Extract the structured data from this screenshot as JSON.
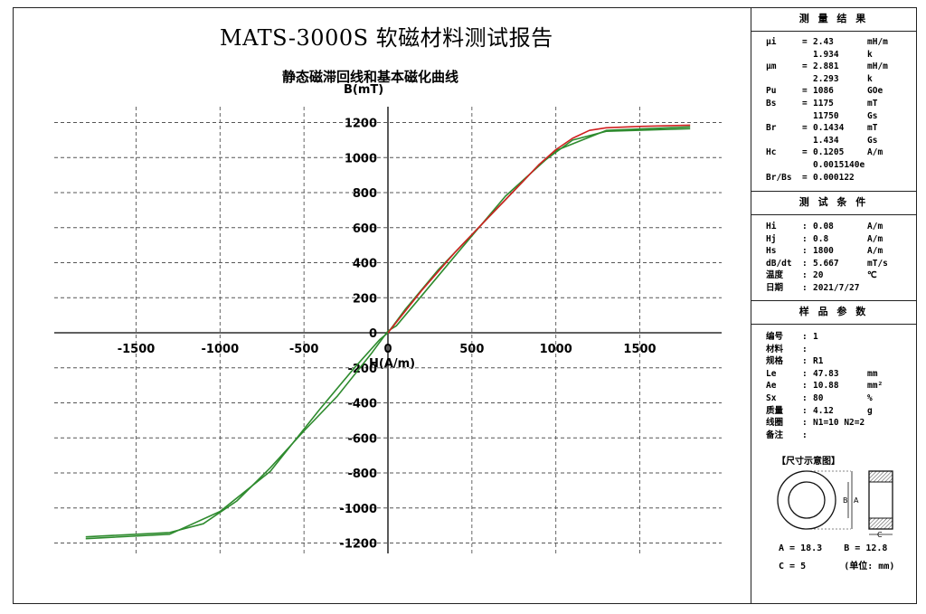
{
  "report_title": "MATS-3000S 软磁材料测试报告",
  "chart_title": "静态磁滞回线和基本磁化曲线",
  "colors": {
    "hysteresis": "#2e8b2e",
    "magnetization": "#d02020",
    "grid": "#555555"
  },
  "chart_data": {
    "type": "line",
    "title": "静态磁滞回线和基本磁化曲线",
    "xlabel": "H(A/m)",
    "ylabel": "B(mT)",
    "xlim": [
      -2000,
      2000
    ],
    "ylim": [
      -1300,
      1300
    ],
    "x_ticks": [
      -1500,
      -1000,
      -500,
      0,
      500,
      1000,
      1500
    ],
    "y_ticks": [
      -1200,
      -1000,
      -800,
      -600,
      -400,
      -200,
      0,
      200,
      400,
      600,
      800,
      1000,
      1200
    ],
    "grid": true,
    "series": [
      {
        "color": "#2e8b2e",
        "x": [
          -1800,
          -1300,
          -1000,
          -700,
          -400,
          -200,
          -50,
          0,
          100,
          300,
          500,
          700,
          900,
          1100,
          1300,
          1800
        ],
        "y": [
          -1175,
          -1150,
          -1020,
          -790,
          -430,
          -200,
          -40,
          0,
          130,
          360,
          560,
          760,
          960,
          1100,
          1150,
          1165
        ]
      },
      {
        "color": "#2e8b2e",
        "x": [
          1800,
          1300,
          1000,
          700,
          400,
          200,
          50,
          0,
          -100,
          -300,
          -500,
          -700,
          -900,
          -1100,
          -1300,
          -1800
        ],
        "y": [
          1175,
          1155,
          1040,
          780,
          440,
          210,
          40,
          10,
          -120,
          -360,
          -560,
          -770,
          -960,
          -1090,
          -1140,
          -1165
        ]
      },
      {
        "color": "#d02020",
        "x": [
          0,
          100,
          200,
          300,
          400,
          500,
          600,
          700,
          800,
          900,
          1000,
          1100,
          1200,
          1300,
          1500,
          1800
        ],
        "y": [
          0,
          120,
          240,
          350,
          460,
          560,
          660,
          760,
          860,
          960,
          1045,
          1110,
          1155,
          1170,
          1178,
          1185
        ]
      }
    ]
  },
  "panel": {
    "results": {
      "title": "测 量 结 果",
      "rows": [
        {
          "k": "μi",
          "eq": "=",
          "v": "2.43",
          "u": "mH/m"
        },
        {
          "k": "",
          "eq": "",
          "v": "1.934",
          "u": "k"
        },
        {
          "k": "μm",
          "eq": "=",
          "v": "2.881",
          "u": "mH/m"
        },
        {
          "k": "",
          "eq": "",
          "v": "2.293",
          "u": "k"
        },
        {
          "k": "Pu",
          "eq": "=",
          "v": "1086",
          "u": "GOe"
        },
        {
          "k": "Bs",
          "eq": "=",
          "v": "1175",
          "u": "mT"
        },
        {
          "k": "",
          "eq": "",
          "v": "11750",
          "u": "Gs"
        },
        {
          "k": "Br",
          "eq": "=",
          "v": "0.1434",
          "u": "mT"
        },
        {
          "k": "",
          "eq": "",
          "v": "1.434",
          "u": "Gs"
        },
        {
          "k": "Hc",
          "eq": "=",
          "v": "0.1205",
          "u": "A/m"
        },
        {
          "k": "",
          "eq": "",
          "v": "0.0015140e",
          "u": ""
        },
        {
          "k": "Br/Bs",
          "eq": "=",
          "v": "0.000122",
          "u": ""
        }
      ]
    },
    "conditions": {
      "title": "测 试 条 件",
      "rows": [
        {
          "k": "Hi",
          "eq": ":",
          "v": "0.08",
          "u": "A/m"
        },
        {
          "k": "Hj",
          "eq": ":",
          "v": "0.8",
          "u": "A/m"
        },
        {
          "k": "Hs",
          "eq": ":",
          "v": "1800",
          "u": "A/m"
        },
        {
          "k": "dB/dt",
          "eq": ":",
          "v": "5.667",
          "u": "mT/s"
        },
        {
          "k": "温度",
          "eq": ":",
          "v": "20",
          "u": "℃"
        },
        {
          "k": "日期",
          "eq": ":",
          "v": "2021/7/27",
          "u": ""
        }
      ]
    },
    "sample": {
      "title": "样 品 参 数",
      "rows": [
        {
          "k": "编号",
          "eq": ":",
          "v": "1",
          "u": ""
        },
        {
          "k": "材料",
          "eq": ":",
          "v": "",
          "u": ""
        },
        {
          "k": "规格",
          "eq": ":",
          "v": "R1",
          "u": ""
        },
        {
          "k": "Le",
          "eq": ":",
          "v": "47.83",
          "u": "mm"
        },
        {
          "k": "Ae",
          "eq": ":",
          "v": "10.88",
          "u": "mm²"
        },
        {
          "k": "Sx",
          "eq": ":",
          "v": "80",
          "u": "%"
        },
        {
          "k": "质量",
          "eq": ":",
          "v": "4.12",
          "u": "g"
        },
        {
          "k": "线圈",
          "eq": ":",
          "v": "N1=10 N2=2",
          "u": ""
        },
        {
          "k": "备注",
          "eq": ":",
          "v": "",
          "u": ""
        }
      ],
      "dim_title": "【尺寸示意图】",
      "dim_B": "B",
      "dim_A": "A",
      "dim_C": "C",
      "dim_line1": "A = 18.3    B = 12.8",
      "dim_line2": "C = 5       (单位: mm)"
    }
  }
}
